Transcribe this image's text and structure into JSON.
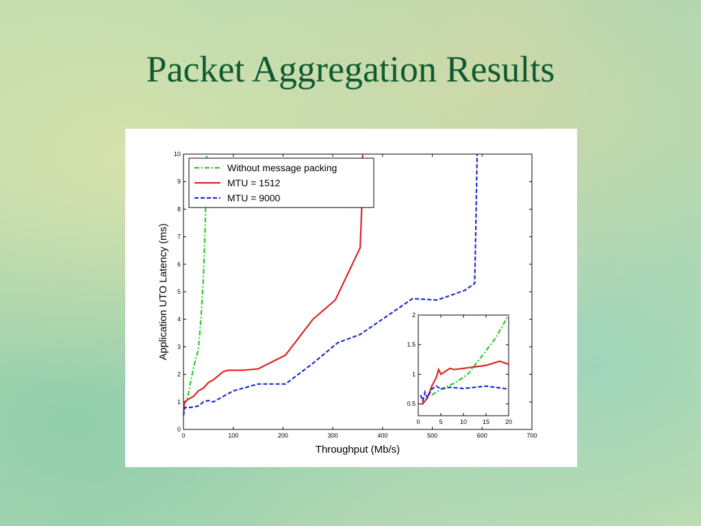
{
  "title": "Packet Aggregation Results",
  "chart_data": [
    {
      "type": "line",
      "xlabel": "Throughput (Mb/s)",
      "ylabel": "Application UTO Latency (ms)",
      "xlim": [
        0,
        700
      ],
      "ylim": [
        0,
        10
      ],
      "xticks": [
        0,
        100,
        200,
        300,
        400,
        500,
        600,
        700
      ],
      "yticks": [
        0,
        1,
        2,
        3,
        4,
        5,
        6,
        7,
        8,
        9,
        10
      ],
      "legend": "upper left",
      "series": [
        {
          "name": "Without message packing",
          "color": "#22cc22",
          "linestyle": "dashdot",
          "x": [
            0,
            5,
            10,
            15,
            20,
            25,
            30,
            35,
            40,
            43,
            45,
            47
          ],
          "values": [
            0.9,
            1.0,
            1.3,
            1.8,
            2.2,
            2.6,
            2.9,
            4.0,
            5.5,
            7,
            8.5,
            10
          ]
        },
        {
          "name": "MTU = 1512",
          "color": "#dd2222",
          "linestyle": "solid",
          "x": [
            0,
            2,
            10,
            20,
            30,
            40,
            50,
            60,
            70,
            80,
            90,
            100,
            120,
            150,
            205,
            260,
            305,
            355,
            358,
            360
          ],
          "values": [
            0.6,
            1.0,
            1.1,
            1.2,
            1.4,
            1.5,
            1.7,
            1.8,
            1.95,
            2.1,
            2.15,
            2.15,
            2.15,
            2.2,
            2.7,
            4.0,
            4.7,
            6.6,
            8,
            10
          ]
        },
        {
          "name": "MTU = 9000",
          "color": "#1a2ad0",
          "linestyle": "dashed",
          "x": [
            0,
            3,
            15,
            30,
            40,
            50,
            60,
            80,
            100,
            150,
            205,
            260,
            310,
            355,
            460,
            510,
            565,
            585,
            587,
            590
          ],
          "values": [
            0.5,
            0.8,
            0.8,
            0.85,
            1.0,
            1.05,
            1.0,
            1.2,
            1.4,
            1.65,
            1.65,
            2.4,
            3.15,
            3.45,
            4.75,
            4.7,
            5.05,
            5.3,
            7,
            10
          ]
        }
      ]
    },
    {
      "type": "line",
      "xlim": [
        0,
        20
      ],
      "ylim": [
        0.3,
        2
      ],
      "xticks": [
        0,
        5,
        10,
        15,
        20
      ],
      "yticks": [
        0.5,
        1,
        1.5,
        2
      ],
      "series": [
        {
          "color": "#22cc22",
          "linestyle": "dashdot",
          "x": [
            3,
            5,
            8,
            11,
            14,
            17,
            20
          ],
          "values": [
            0.65,
            0.75,
            0.85,
            1.0,
            1.3,
            1.6,
            2.0
          ]
        },
        {
          "color": "#dd2222",
          "linestyle": "solid",
          "x": [
            0.5,
            1,
            2,
            3,
            4,
            4.5,
            5,
            6,
            7,
            8,
            10,
            15,
            18,
            20
          ],
          "values": [
            0.5,
            0.5,
            0.6,
            0.8,
            0.95,
            1.08,
            1.0,
            1.05,
            1.1,
            1.08,
            1.1,
            1.15,
            1.22,
            1.17
          ]
        },
        {
          "color": "#1a2ad0",
          "linestyle": "dashed",
          "x": [
            0.5,
            1,
            1.5,
            2,
            3,
            4,
            5,
            7,
            10,
            15,
            20
          ],
          "values": [
            0.65,
            0.55,
            0.7,
            0.6,
            0.75,
            0.8,
            0.75,
            0.78,
            0.76,
            0.8,
            0.75
          ]
        }
      ]
    }
  ]
}
